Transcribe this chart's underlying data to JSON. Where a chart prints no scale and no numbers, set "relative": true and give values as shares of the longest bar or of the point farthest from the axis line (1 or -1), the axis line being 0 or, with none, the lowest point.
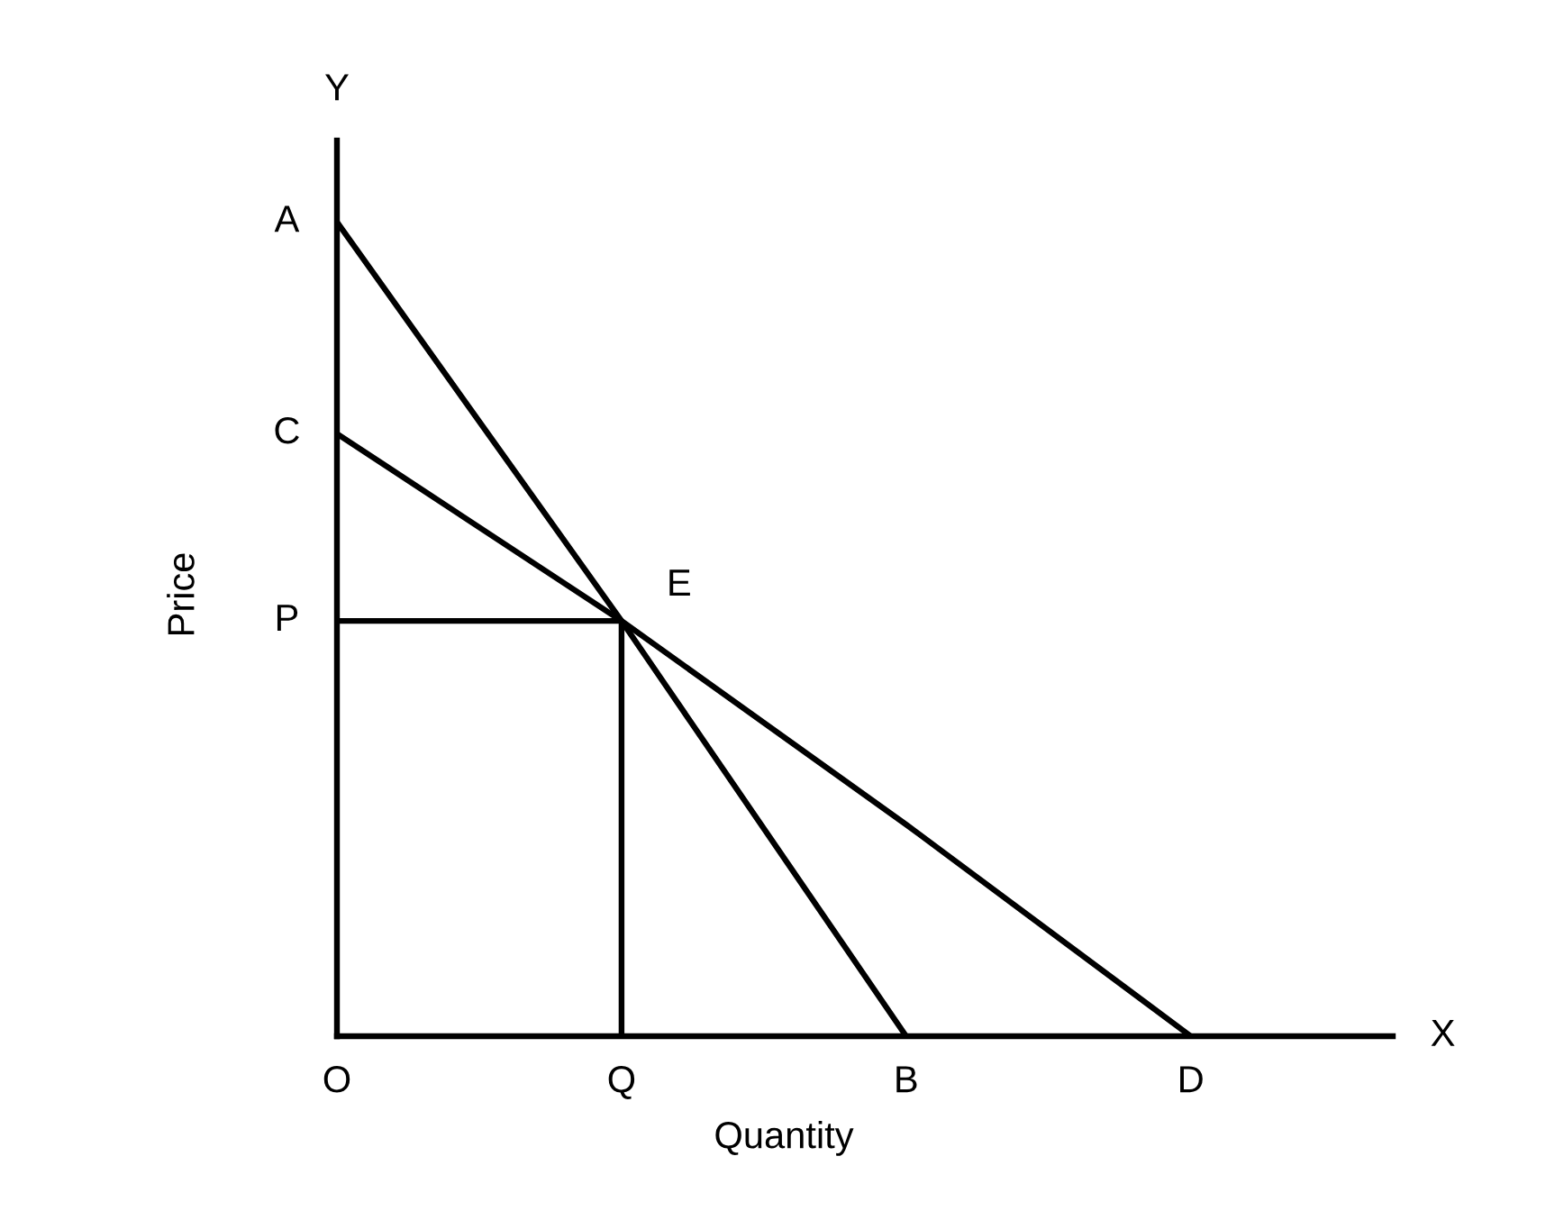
{
  "chart_data": {
    "type": "line",
    "relative": true,
    "xlabel": "Quantity",
    "ylabel": "Price",
    "categories": [
      "O",
      "Q",
      "B",
      "D"
    ],
    "line_style": "solid",
    "series": [
      {
        "color": "#000000",
        "values": [
          1,
          0.51,
          0,
          null
        ]
      },
      {
        "color": "#000000",
        "values": [
          0.74,
          0.51,
          0.26,
          0
        ]
      },
      {
        "color": "#000000",
        "values": [
          0.51,
          0.51,
          null,
          null
        ]
      },
      {
        "color": "#000000",
        "x": [
          "Q",
          "Q"
        ],
        "values": [
          0.51,
          0
        ]
      }
    ],
    "ref_lines": [
      {
        "axis": "x",
        "value": "O",
        "color": "#000000"
      }
    ],
    "annotations": [
      "Y",
      "X",
      {
        "text": "A",
        "x": "O",
        "y": 1
      },
      {
        "text": "C",
        "x": "O",
        "y": 0.74
      },
      {
        "text": "P",
        "x": "O",
        "y": 0.51
      },
      {
        "text": "E",
        "x": "Q",
        "y": 0.51
      }
    ]
  }
}
